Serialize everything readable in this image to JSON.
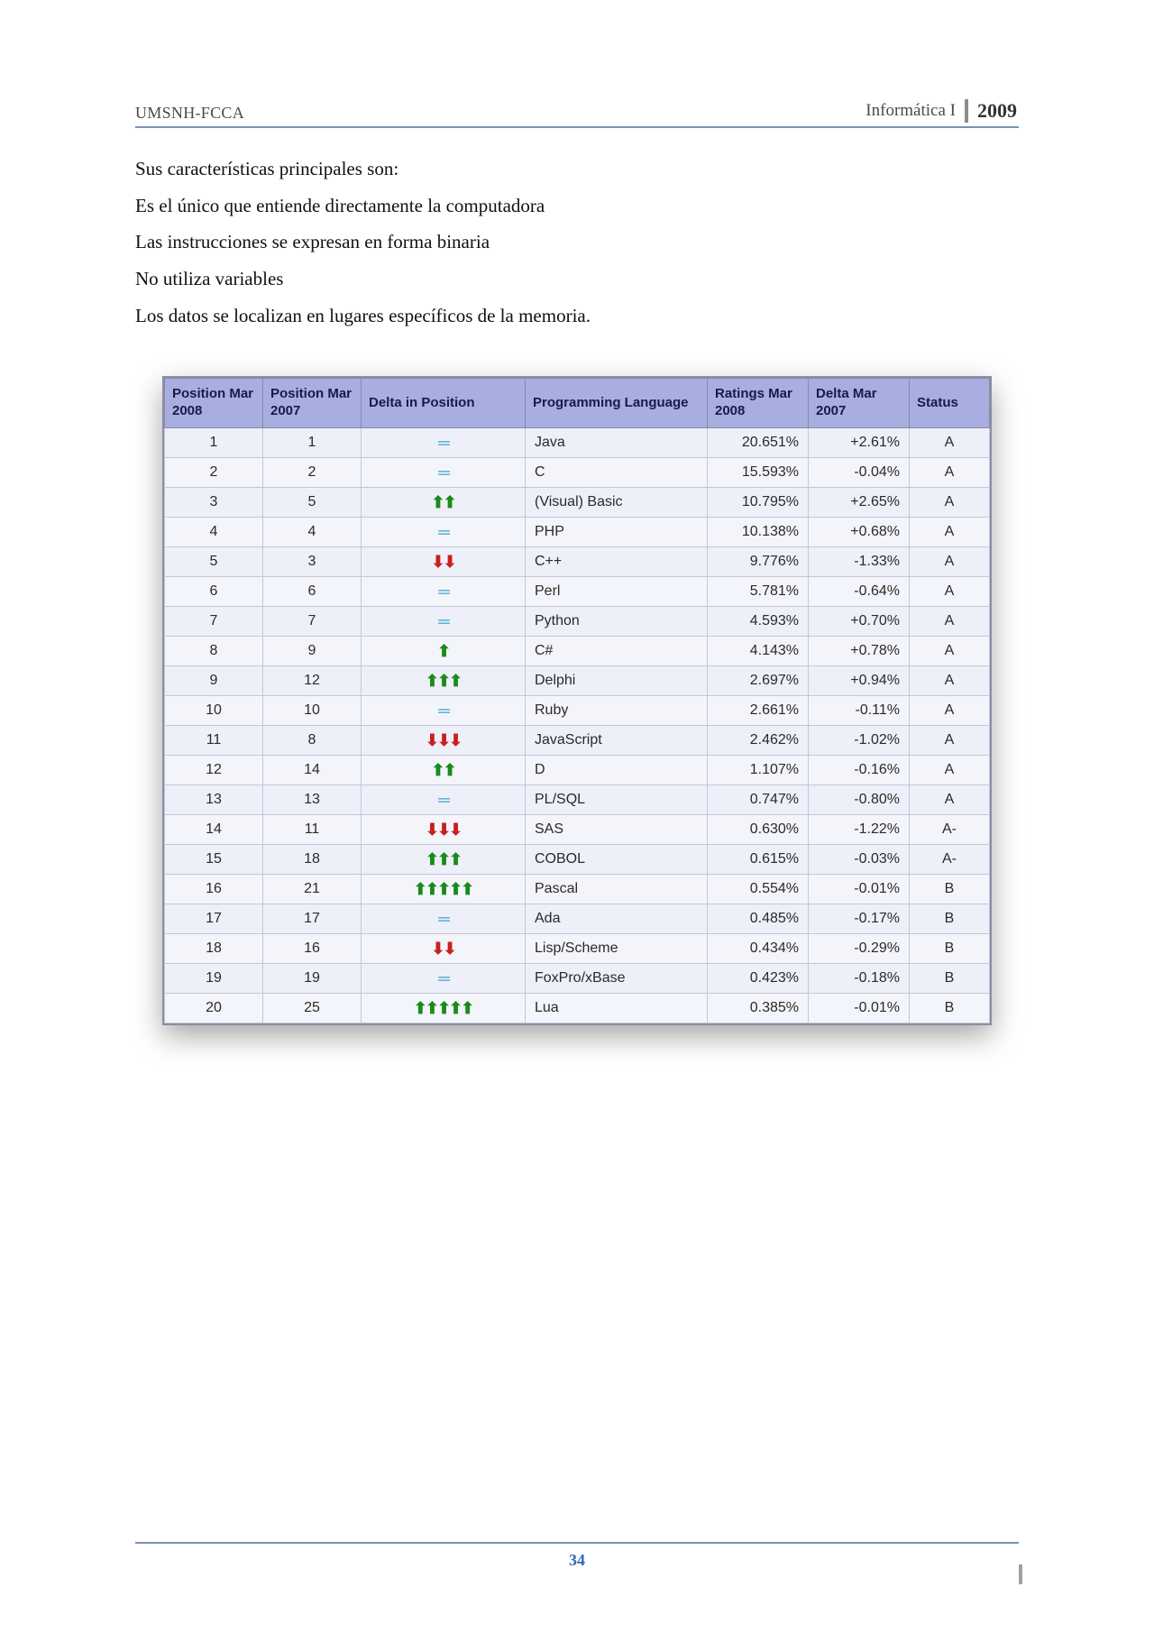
{
  "header": {
    "left": "UMSNH-FCCA",
    "rightLabel": "Informática I",
    "year": "2009"
  },
  "paragraphs": [
    "Sus características principales son:",
    "Es el único que entiende directamente la computadora",
    "Las instrucciones se expresan en forma binaria",
    "No utiliza variables",
    "Los datos se localizan en lugares específicos de la memoria."
  ],
  "table": {
    "headers": {
      "pos2008": "Position Mar 2008",
      "pos2007": "Position Mar 2007",
      "deltaPos": "Delta in Position",
      "lang": "Programming Language",
      "ratings": "Ratings Mar 2008",
      "deltaR": "Delta Mar 2007",
      "status": "Status"
    },
    "deltaStyle": {
      "same_color": "#3aa5c9",
      "up_color": "#1a8b1a",
      "down_color": "#c91f1f",
      "eq_glyph": "═",
      "up_glyph": "⬆",
      "down_glyph": "⬇"
    },
    "rows": [
      {
        "pos2008": "1",
        "pos2007": "1",
        "delta": {
          "dir": "same",
          "count": 1
        },
        "lang": "Java",
        "ratings": "20.651%",
        "deltaR": "+2.61%",
        "status": "A"
      },
      {
        "pos2008": "2",
        "pos2007": "2",
        "delta": {
          "dir": "same",
          "count": 1
        },
        "lang": "C",
        "ratings": "15.593%",
        "deltaR": "-0.04%",
        "status": "A"
      },
      {
        "pos2008": "3",
        "pos2007": "5",
        "delta": {
          "dir": "up",
          "count": 2
        },
        "lang": "(Visual) Basic",
        "ratings": "10.795%",
        "deltaR": "+2.65%",
        "status": "A"
      },
      {
        "pos2008": "4",
        "pos2007": "4",
        "delta": {
          "dir": "same",
          "count": 1
        },
        "lang": "PHP",
        "ratings": "10.138%",
        "deltaR": "+0.68%",
        "status": "A"
      },
      {
        "pos2008": "5",
        "pos2007": "3",
        "delta": {
          "dir": "down",
          "count": 2
        },
        "lang": "C++",
        "ratings": "9.776%",
        "deltaR": "-1.33%",
        "status": "A"
      },
      {
        "pos2008": "6",
        "pos2007": "6",
        "delta": {
          "dir": "same",
          "count": 1
        },
        "lang": "Perl",
        "ratings": "5.781%",
        "deltaR": "-0.64%",
        "status": "A"
      },
      {
        "pos2008": "7",
        "pos2007": "7",
        "delta": {
          "dir": "same",
          "count": 1
        },
        "lang": "Python",
        "ratings": "4.593%",
        "deltaR": "+0.70%",
        "status": "A"
      },
      {
        "pos2008": "8",
        "pos2007": "9",
        "delta": {
          "dir": "up",
          "count": 1
        },
        "lang": "C#",
        "ratings": "4.143%",
        "deltaR": "+0.78%",
        "status": "A"
      },
      {
        "pos2008": "9",
        "pos2007": "12",
        "delta": {
          "dir": "up",
          "count": 3
        },
        "lang": "Delphi",
        "ratings": "2.697%",
        "deltaR": "+0.94%",
        "status": "A"
      },
      {
        "pos2008": "10",
        "pos2007": "10",
        "delta": {
          "dir": "same",
          "count": 1
        },
        "lang": "Ruby",
        "ratings": "2.661%",
        "deltaR": "-0.11%",
        "status": "A"
      },
      {
        "pos2008": "11",
        "pos2007": "8",
        "delta": {
          "dir": "down",
          "count": 3
        },
        "lang": "JavaScript",
        "ratings": "2.462%",
        "deltaR": "-1.02%",
        "status": "A"
      },
      {
        "pos2008": "12",
        "pos2007": "14",
        "delta": {
          "dir": "up",
          "count": 2
        },
        "lang": "D",
        "ratings": "1.107%",
        "deltaR": "-0.16%",
        "status": "A"
      },
      {
        "pos2008": "13",
        "pos2007": "13",
        "delta": {
          "dir": "same",
          "count": 1
        },
        "lang": "PL/SQL",
        "ratings": "0.747%",
        "deltaR": "-0.80%",
        "status": "A"
      },
      {
        "pos2008": "14",
        "pos2007": "11",
        "delta": {
          "dir": "down",
          "count": 3
        },
        "lang": "SAS",
        "ratings": "0.630%",
        "deltaR": "-1.22%",
        "status": "A-"
      },
      {
        "pos2008": "15",
        "pos2007": "18",
        "delta": {
          "dir": "up",
          "count": 3
        },
        "lang": "COBOL",
        "ratings": "0.615%",
        "deltaR": "-0.03%",
        "status": "A-"
      },
      {
        "pos2008": "16",
        "pos2007": "21",
        "delta": {
          "dir": "up",
          "count": 5
        },
        "lang": "Pascal",
        "ratings": "0.554%",
        "deltaR": "-0.01%",
        "status": "B"
      },
      {
        "pos2008": "17",
        "pos2007": "17",
        "delta": {
          "dir": "same",
          "count": 1
        },
        "lang": "Ada",
        "ratings": "0.485%",
        "deltaR": "-0.17%",
        "status": "B"
      },
      {
        "pos2008": "18",
        "pos2007": "16",
        "delta": {
          "dir": "down",
          "count": 2
        },
        "lang": "Lisp/Scheme",
        "ratings": "0.434%",
        "deltaR": "-0.29%",
        "status": "B"
      },
      {
        "pos2008": "19",
        "pos2007": "19",
        "delta": {
          "dir": "same",
          "count": 1
        },
        "lang": "FoxPro/xBase",
        "ratings": "0.423%",
        "deltaR": "-0.18%",
        "status": "B"
      },
      {
        "pos2008": "20",
        "pos2007": "25",
        "delta": {
          "dir": "up",
          "count": 5
        },
        "lang": "Lua",
        "ratings": "0.385%",
        "deltaR": "-0.01%",
        "status": "B"
      }
    ]
  },
  "footer": {
    "pageNumber": "34"
  },
  "colors": {
    "header_rule": "#7a93b6",
    "table_header_bg": "#a8aee0",
    "table_row_bg": "#eef0f9",
    "table_row_alt_bg": "#f4f5fb",
    "page_number_color": "#2d68b6"
  }
}
